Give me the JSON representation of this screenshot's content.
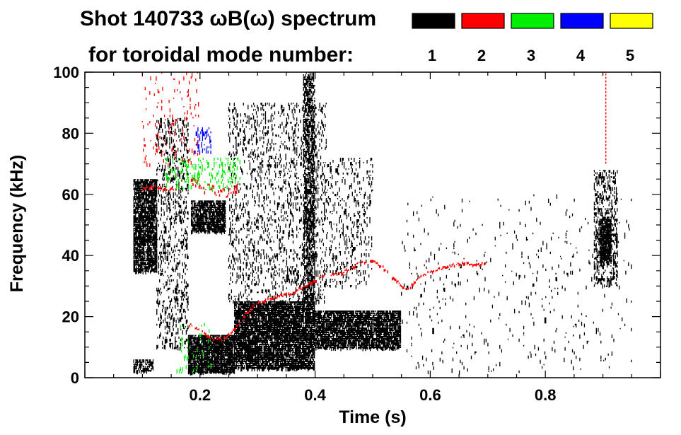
{
  "chart_data": {
    "type": "heatmap",
    "title_line1": "Shot 140733 ωB(ω) spectrum",
    "title_line2": "for toroidal mode number:",
    "xlabel": "Time (s)",
    "ylabel": "Frequency (kHz)",
    "xlim": [
      0.0,
      1.0
    ],
    "ylim": [
      0,
      100
    ],
    "x_ticks": [
      0.2,
      0.4,
      0.6,
      0.8
    ],
    "x_tick_labels": [
      "0.2",
      "0.4",
      "0.6",
      "0.8"
    ],
    "y_ticks": [
      0,
      20,
      40,
      60,
      80,
      100
    ],
    "y_tick_labels": [
      "0",
      "20",
      "40",
      "60",
      "80",
      "100"
    ],
    "legend": {
      "placement": "top-right",
      "entries": [
        {
          "mode": "1",
          "color": "#000000"
        },
        {
          "mode": "2",
          "color": "#ff0000"
        },
        {
          "mode": "3",
          "color": "#00ee00"
        },
        {
          "mode": "4",
          "color": "#0000ff"
        },
        {
          "mode": "5",
          "color": "#ffff00"
        }
      ]
    },
    "regions": [
      {
        "mode": 1,
        "color": "#000000",
        "t": [
          0.085,
          0.125
        ],
        "f": [
          35,
          65
        ],
        "density": 0.85
      },
      {
        "mode": 1,
        "color": "#000000",
        "t": [
          0.085,
          0.12
        ],
        "f": [
          2,
          6
        ],
        "density": 0.7
      },
      {
        "mode": 1,
        "color": "#000000",
        "t": [
          0.18,
          0.26
        ],
        "f": [
          2,
          14
        ],
        "density": 0.95
      },
      {
        "mode": 1,
        "color": "#000000",
        "t": [
          0.26,
          0.4
        ],
        "f": [
          3,
          25
        ],
        "density": 0.9
      },
      {
        "mode": 1,
        "color": "#000000",
        "t": [
          0.4,
          0.55
        ],
        "f": [
          10,
          22
        ],
        "density": 0.85
      },
      {
        "mode": 1,
        "color": "#000000",
        "t": [
          0.185,
          0.245
        ],
        "f": [
          48,
          58
        ],
        "density": 0.85
      },
      {
        "mode": 1,
        "color": "#000000",
        "t": [
          0.38,
          0.4
        ],
        "f": [
          25,
          100
        ],
        "density": 0.55
      },
      {
        "mode": 1,
        "color": "#000000",
        "t": [
          0.25,
          0.42
        ],
        "f": [
          25,
          90
        ],
        "density": 0.15
      },
      {
        "mode": 1,
        "color": "#000000",
        "t": [
          0.125,
          0.18
        ],
        "f": [
          10,
          85
        ],
        "density": 0.2
      },
      {
        "mode": 1,
        "color": "#000000",
        "t": [
          0.42,
          0.5
        ],
        "f": [
          30,
          72
        ],
        "density": 0.12
      },
      {
        "mode": 1,
        "color": "#000000",
        "t": [
          0.895,
          0.915
        ],
        "f": [
          38,
          52
        ],
        "density": 0.9
      },
      {
        "mode": 1,
        "color": "#000000",
        "t": [
          0.885,
          0.925
        ],
        "f": [
          30,
          68
        ],
        "density": 0.3
      },
      {
        "mode": 1,
        "color": "#000000",
        "t": [
          0.55,
          0.95
        ],
        "f": [
          2,
          60
        ],
        "density": 0.02
      },
      {
        "mode": 3,
        "color": "#00ee00",
        "t": [
          0.14,
          0.27
        ],
        "f": [
          62,
          72
        ],
        "density": 0.15
      },
      {
        "mode": 3,
        "color": "#00ee00",
        "t": [
          0.16,
          0.22
        ],
        "f": [
          2,
          18
        ],
        "density": 0.05
      },
      {
        "mode": 4,
        "color": "#0000ff",
        "t": [
          0.19,
          0.22
        ],
        "f": [
          74,
          82
        ],
        "density": 0.25
      },
      {
        "mode": 2,
        "color": "#ff0000",
        "t": [
          0.1,
          0.2
        ],
        "f": [
          70,
          100
        ],
        "density": 0.04
      }
    ],
    "red_trace": {
      "mode": 2,
      "color": "#ff0000",
      "t": [
        0.1,
        0.12,
        0.14,
        0.16,
        0.18,
        0.2,
        0.22,
        0.24,
        0.26,
        0.28,
        0.3,
        0.32,
        0.34,
        0.36,
        0.38,
        0.4,
        0.42,
        0.44,
        0.46,
        0.48,
        0.5,
        0.52,
        0.54,
        0.56,
        0.58,
        0.6,
        0.62,
        0.64,
        0.66,
        0.68,
        0.7
      ],
      "f": [
        62,
        63,
        62,
        62,
        18,
        16,
        13,
        13,
        16,
        21,
        25,
        26,
        27,
        28,
        30,
        32,
        34,
        34,
        36,
        38,
        39,
        36,
        32,
        29,
        33,
        35,
        36,
        37,
        38,
        37,
        38
      ]
    },
    "red_band": {
      "mode": 2,
      "color": "#ff0000",
      "t": [
        0.185,
        0.2,
        0.22,
        0.24,
        0.26,
        0.265
      ],
      "f": [
        65,
        63,
        62,
        61,
        61,
        62
      ]
    },
    "spike": {
      "mode": 2,
      "color": "#ff0000",
      "t": 0.905,
      "f": [
        70,
        100
      ]
    }
  }
}
